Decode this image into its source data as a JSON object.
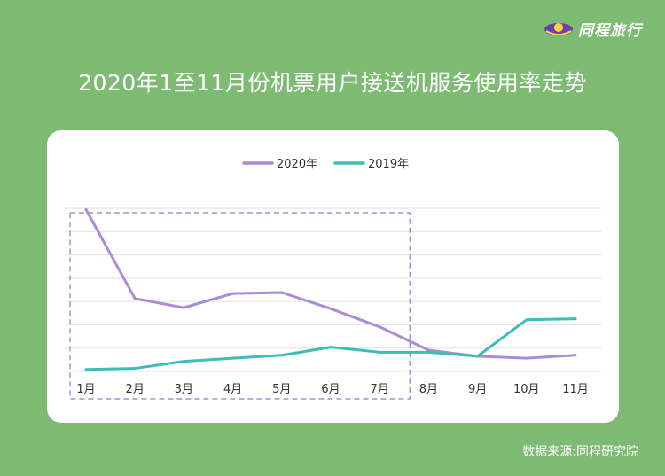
{
  "brand": {
    "name": "同程旅行",
    "icon": "tongcheng-logo-icon"
  },
  "title": "2020年1至11月份机票用户接送机服务使用率走势",
  "source": "数据来源:同程研究院",
  "colors": {
    "background": "#7dbb73",
    "series_2020": "#a98bd8",
    "series_2019": "#3dbcb8",
    "highlight_box": "#8b7fc7",
    "logo_accent": "#6a3fb0"
  },
  "chart_data": {
    "type": "line",
    "categories": [
      "1月",
      "2月",
      "3月",
      "4月",
      "5月",
      "6月",
      "7月",
      "8月",
      "9月",
      "10月",
      "11月"
    ],
    "series": [
      {
        "name": "2020年",
        "values": [
          8.0,
          3.6,
          3.15,
          3.85,
          3.9,
          3.1,
          2.2,
          1.05,
          0.75,
          0.65,
          0.8
        ]
      },
      {
        "name": "2019年",
        "values": [
          0.1,
          0.15,
          0.5,
          0.65,
          0.8,
          1.2,
          0.95,
          0.95,
          0.75,
          2.55,
          2.6
        ]
      }
    ],
    "ylim": [
      0,
      8.5
    ],
    "y_axis_labels_shown": false,
    "grid": true,
    "legend": "top-center",
    "highlight_range": [
      "1月",
      "7月"
    ]
  }
}
